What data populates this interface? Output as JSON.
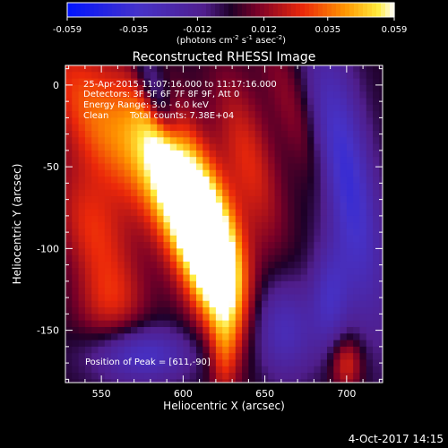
{
  "chart_data": {
    "type": "heatmap",
    "title": "Reconstructed RHESSI Image",
    "xlabel": "Heliocentric X (arcsec)",
    "ylabel": "Heliocentric Y (arcsec)",
    "xlim": [
      528,
      722
    ],
    "ylim": [
      -182,
      12
    ],
    "x_ticks": [
      550,
      600,
      650,
      700
    ],
    "y_ticks": [
      0,
      -50,
      -100,
      -150
    ],
    "colorbar": {
      "min": -0.059,
      "max": 0.059,
      "ticks": [
        "-0.059",
        "-0.035",
        "-0.012",
        "0.012",
        "0.035",
        "0.059"
      ],
      "unit_text": "(photons cm",
      "unit_sup1": "-2",
      "unit_mid": " s",
      "unit_sup2": "-1",
      "unit_mid2": " asec",
      "unit_sup3": "-2",
      "unit_close": ")"
    },
    "annotations": {
      "time_range": "25-Apr-2015 11:07:16.000 to 11:17:16.000",
      "detectors": "Detectors: 3F 5F 6F 7F 8F 9F, Att 0",
      "energy": "Energy Range: 3.0 - 6.0 keV",
      "method": "Clean",
      "counts": "Total counts: 7.38E+04",
      "peak": "Position of Peak = [611,-90]"
    },
    "peak": [
      611,
      -90
    ],
    "blobs": [
      {
        "x": 611,
        "y": -90,
        "sx": 14,
        "sy": 42,
        "rot": -18,
        "amp": 0.068
      },
      {
        "x": 592,
        "y": -50,
        "sx": 13,
        "sy": 40,
        "rot": -25,
        "amp": 0.04
      },
      {
        "x": 620,
        "y": -110,
        "sx": 10,
        "sy": 30,
        "rot": -10,
        "amp": 0.035
      },
      {
        "x": 550,
        "y": -25,
        "sx": 16,
        "sy": 45,
        "rot": -30,
        "amp": 0.034
      },
      {
        "x": 545,
        "y": -90,
        "sx": 14,
        "sy": 30,
        "rot": -20,
        "amp": 0.025
      },
      {
        "x": 555,
        "y": -135,
        "sx": 15,
        "sy": 18,
        "rot": 0,
        "amp": 0.018
      },
      {
        "x": 640,
        "y": -45,
        "sx": 11,
        "sy": 38,
        "rot": -15,
        "amp": 0.024
      },
      {
        "x": 625,
        "y": -165,
        "sx": 6,
        "sy": 20,
        "rot": 0,
        "amp": 0.022
      },
      {
        "x": 670,
        "y": -20,
        "sx": 9,
        "sy": 45,
        "rot": -20,
        "amp": 0.014
      },
      {
        "x": 700,
        "y": -170,
        "sx": 7,
        "sy": 12,
        "rot": 0,
        "amp": 0.026
      },
      {
        "x": 575,
        "y": -165,
        "sx": 22,
        "sy": 12,
        "rot": 0,
        "amp": -0.032
      },
      {
        "x": 585,
        "y": -10,
        "sx": 6,
        "sy": 22,
        "rot": -20,
        "amp": -0.03
      },
      {
        "x": 700,
        "y": -60,
        "sx": 12,
        "sy": 60,
        "rot": -10,
        "amp": -0.04
      },
      {
        "x": 660,
        "y": -150,
        "sx": 16,
        "sy": 22,
        "rot": 0,
        "amp": -0.028
      },
      {
        "x": 690,
        "y": -130,
        "sx": 8,
        "sy": 22,
        "rot": 0,
        "amp": -0.024
      }
    ]
  },
  "footer": {
    "timestamp": "4-Oct-2017 14:15"
  }
}
